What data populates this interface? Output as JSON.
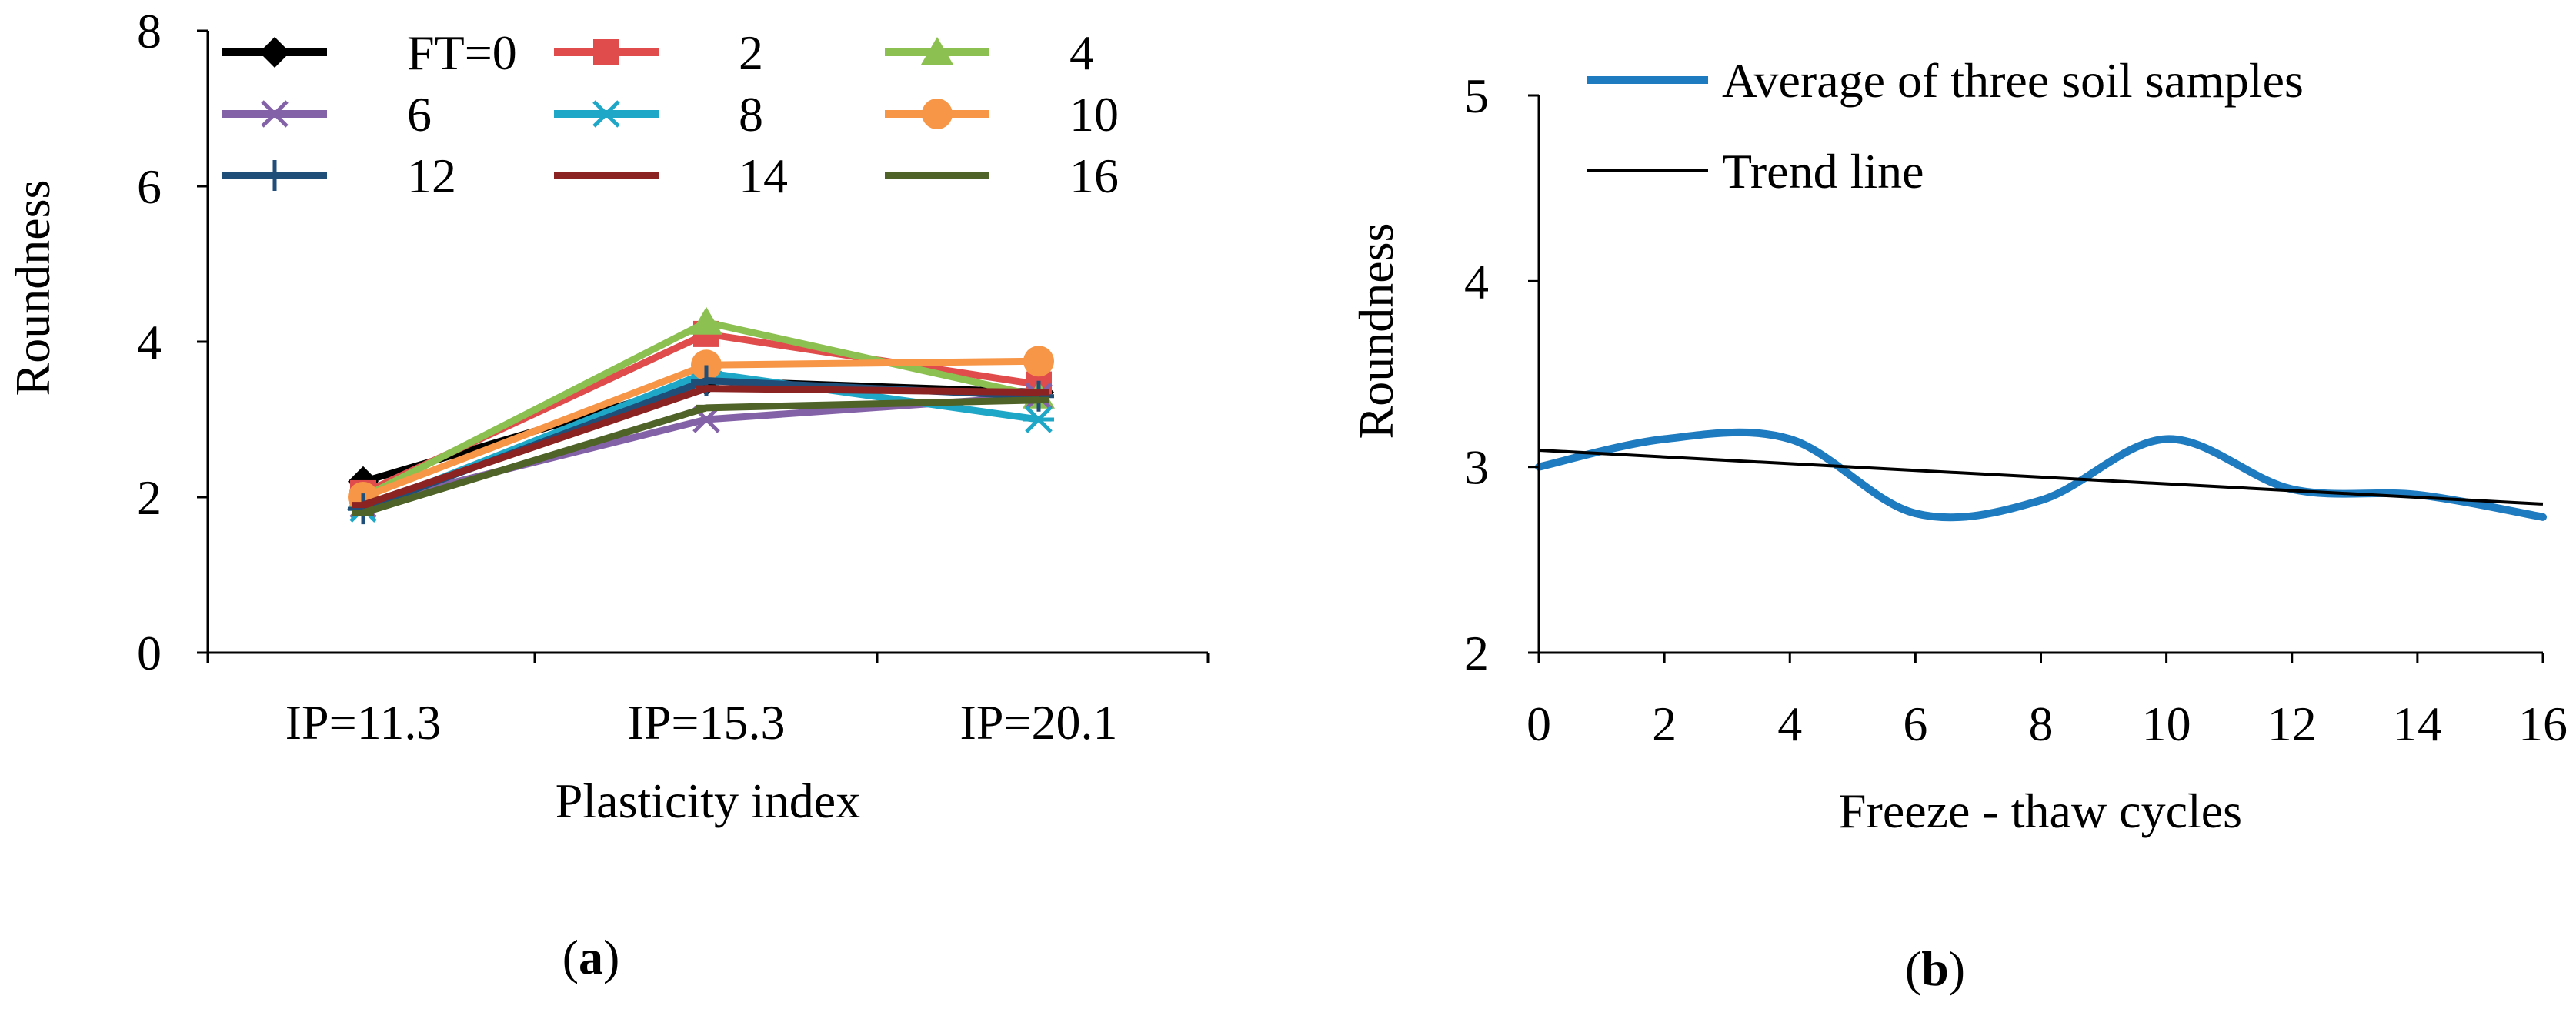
{
  "panels": {
    "a": {
      "caption_letter": "a",
      "caption_open": "(",
      "caption_close": ")"
    },
    "b": {
      "caption_letter": "b",
      "caption_open": "(",
      "caption_close": ")"
    }
  },
  "chart_data": [
    {
      "id": "a",
      "type": "line",
      "title": "",
      "xlabel": "Plasticity index",
      "ylabel": "Roundness",
      "categories": [
        "IP=11.3",
        "IP=15.3",
        "IP=20.1"
      ],
      "ylim": [
        0,
        8
      ],
      "yticks": [
        0,
        2,
        4,
        6,
        8
      ],
      "grid": false,
      "legend_position": "top",
      "series": [
        {
          "name": "FT=0",
          "color": "#000000",
          "marker": "diamond",
          "values": [
            2.2,
            3.5,
            3.35
          ]
        },
        {
          "name": "2",
          "color": "#e04c4c",
          "marker": "square",
          "values": [
            2.05,
            4.1,
            3.45
          ]
        },
        {
          "name": "4",
          "color": "#8cc051",
          "marker": "triangle",
          "values": [
            2.0,
            4.25,
            3.3
          ]
        },
        {
          "name": "6",
          "color": "#8462a8",
          "marker": "x",
          "values": [
            1.9,
            3.0,
            3.3
          ]
        },
        {
          "name": "8",
          "color": "#1fa7c8",
          "marker": "star",
          "values": [
            1.85,
            3.6,
            3.0
          ]
        },
        {
          "name": "10",
          "color": "#f79646",
          "marker": "circle",
          "values": [
            2.0,
            3.7,
            3.75
          ]
        },
        {
          "name": "12",
          "color": "#1f4e79",
          "marker": "plus",
          "values": [
            1.85,
            3.5,
            3.3
          ]
        },
        {
          "name": "14",
          "color": "#8b2323",
          "marker": "dash",
          "values": [
            1.9,
            3.4,
            3.35
          ]
        },
        {
          "name": "16",
          "color": "#4f6228",
          "marker": "dash",
          "values": [
            1.8,
            3.15,
            3.25
          ]
        }
      ]
    },
    {
      "id": "b",
      "type": "line",
      "title": "",
      "xlabel": "Freeze - thaw cycles",
      "ylabel": "Roundness",
      "xlim": [
        0,
        16
      ],
      "xticks": [
        0,
        2,
        4,
        6,
        8,
        10,
        12,
        14,
        16
      ],
      "ylim": [
        2,
        5
      ],
      "yticks": [
        2,
        3,
        4,
        5
      ],
      "grid": false,
      "legend_position": "top-left",
      "series": [
        {
          "name": "Average of three soil samples",
          "color": "#1f7bbf",
          "smooth": true,
          "x": [
            0,
            2,
            4,
            6,
            8,
            10,
            12,
            14,
            16
          ],
          "y": [
            3.0,
            3.15,
            3.15,
            2.75,
            2.82,
            3.15,
            2.88,
            2.85,
            2.73
          ]
        },
        {
          "name": "Trend line",
          "color": "#000000",
          "smooth": false,
          "x": [
            0,
            16
          ],
          "y": [
            3.09,
            2.8
          ]
        }
      ]
    }
  ]
}
